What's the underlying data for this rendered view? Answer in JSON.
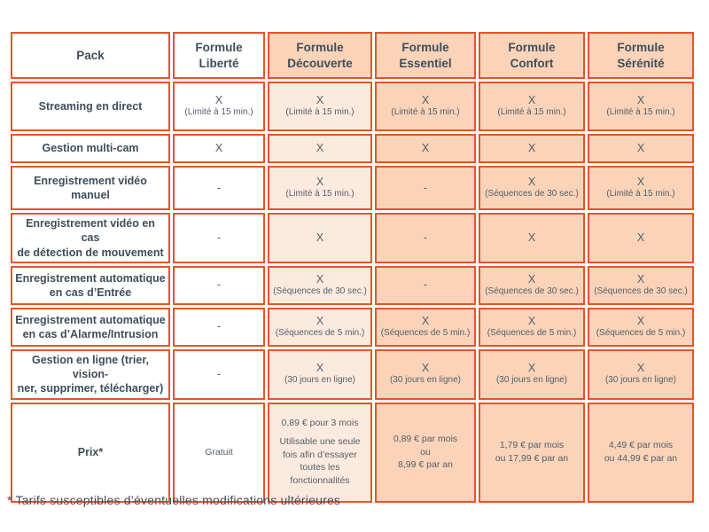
{
  "chart_data": {
    "type": "table",
    "columns": [
      {
        "key": "pack",
        "label_lines": [
          "Pack"
        ],
        "header_tone": "white",
        "body_tone": "white"
      },
      {
        "key": "formule-liberte",
        "label_lines": [
          "Formule",
          "Liberté"
        ],
        "header_tone": "white",
        "body_tone": "white"
      },
      {
        "key": "formule-decouverte",
        "label_lines": [
          "Formule",
          "Découverte"
        ],
        "header_tone": "dark",
        "body_tone": "light"
      },
      {
        "key": "formule-essentiel",
        "label_lines": [
          "Formule",
          "Essentiel"
        ],
        "header_tone": "dark",
        "body_tone": "dark"
      },
      {
        "key": "formule-confort",
        "label_lines": [
          "Formule",
          "Confort"
        ],
        "header_tone": "dark",
        "body_tone": "dark"
      },
      {
        "key": "formule-serenite",
        "label_lines": [
          "Formule",
          "Sérénité"
        ],
        "header_tone": "dark",
        "body_tone": "dark"
      }
    ],
    "rows": [
      {
        "feature_lines": [
          "Streaming en direct"
        ],
        "cells": [
          {
            "mark": "X",
            "note": "(Limité à 15 min.)"
          },
          {
            "mark": "X",
            "note": "(Limité à 15 min.)"
          },
          {
            "mark": "X",
            "note": "(Limité à 15 min.)"
          },
          {
            "mark": "X",
            "note": "(Limité à 15 min.)"
          },
          {
            "mark": "X",
            "note": "(Limité à 15 min.)"
          }
        ]
      },
      {
        "feature_lines": [
          "Gestion multi-cam"
        ],
        "cells": [
          {
            "mark": "X"
          },
          {
            "mark": "X"
          },
          {
            "mark": "X"
          },
          {
            "mark": "X"
          },
          {
            "mark": "X"
          }
        ]
      },
      {
        "feature_lines": [
          "Enregistrement vidéo manuel"
        ],
        "cells": [
          {
            "mark": "-"
          },
          {
            "mark": "X",
            "note": "(Limité à 15 min.)"
          },
          {
            "mark": "-"
          },
          {
            "mark": "X",
            "note": "(Séquences de 30 sec.)"
          },
          {
            "mark": "X",
            "note": "(Limité à 15 min.)"
          }
        ]
      },
      {
        "feature_lines": [
          "Enregistrement vidéo en cas",
          "de détection de mouvement"
        ],
        "cells": [
          {
            "mark": "-"
          },
          {
            "mark": "X"
          },
          {
            "mark": "-"
          },
          {
            "mark": "X"
          },
          {
            "mark": "X"
          }
        ]
      },
      {
        "feature_lines": [
          "Enregistrement automatique",
          "en cas d’Entrée"
        ],
        "cells": [
          {
            "mark": "-"
          },
          {
            "mark": "X",
            "note": "(Séquences de 30 sec.)"
          },
          {
            "mark": "-"
          },
          {
            "mark": "X",
            "note": "(Séquences de 30 sec.)"
          },
          {
            "mark": "X",
            "note": "(Séquences de 30 sec.)"
          }
        ]
      },
      {
        "feature_lines": [
          "Enregistrement automatique",
          "en cas d’Alarme/Intrusion"
        ],
        "cells": [
          {
            "mark": "-"
          },
          {
            "mark": "X",
            "note": "(Séquences de 5 min.)"
          },
          {
            "mark": "X",
            "note": "(Séquences de 5 min.)"
          },
          {
            "mark": "X",
            "note": "(Séquences de 5 min.)"
          },
          {
            "mark": "X",
            "note": "(Séquences de 5 min.)"
          }
        ]
      },
      {
        "feature_lines": [
          "Gestion en ligne (trier, vision-",
          "ner, supprimer, télécharger)"
        ],
        "cells": [
          {
            "mark": "-"
          },
          {
            "mark": "X",
            "note": "(30 jours en ligne)"
          },
          {
            "mark": "X",
            "note": "(30 jours en ligne)"
          },
          {
            "mark": "X",
            "note": "(30 jours en ligne)"
          },
          {
            "mark": "X",
            "note": "(30 jours en ligne)"
          }
        ]
      },
      {
        "feature_lines": [
          "Prix*"
        ],
        "cells": [
          {
            "lines": [
              "Gratuit"
            ]
          },
          {
            "lines": [
              "0,89 € pour 3 mois"
            ],
            "sub_lines": [
              "Utilisable une seule",
              "fois afin d’essayer",
              "toutes les",
              "fonctionnalités"
            ]
          },
          {
            "lines": [
              "0,89 € par mois",
              "ou",
              "8,99 € par an"
            ]
          },
          {
            "lines": [
              "1,79 € par mois",
              "ou 17,99 € par an"
            ]
          },
          {
            "lines": [
              "4,49 € par mois",
              "ou 44,99 € par an"
            ]
          }
        ]
      }
    ]
  },
  "footnote": "* Tarifs susceptibles d’éventuelles modifications ultérieures",
  "colors": {
    "border_orange": "#e4552b",
    "peach_dark": "#fad3b8",
    "peach_light": "#fdeade",
    "text_dark": "#3f4e5b",
    "text_muted": "#525f6b"
  }
}
